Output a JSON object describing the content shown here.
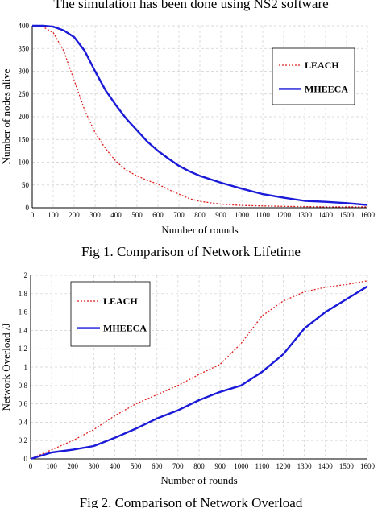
{
  "header_text": "The simulation has been done using NS2 software",
  "colors": {
    "leach": "#e02020",
    "mheeca": "#1a1ad8",
    "grid": "#cfcfcf"
  },
  "chart_data": [
    {
      "type": "line",
      "caption": "Fig 1. Comparison of Network Lifetime",
      "xlabel": "Number of rounds",
      "ylabel": "Number of nodes alive",
      "xlim": [
        0,
        1600
      ],
      "ylim": [
        0,
        400
      ],
      "xticks": [
        "0",
        "100",
        "200",
        "300",
        "400",
        "500",
        "600",
        "700",
        "800",
        "900",
        "1000",
        "1100",
        "1200",
        "1300",
        "1400",
        "1500",
        "1600"
      ],
      "yticks": [
        "0",
        "50",
        "100",
        "150",
        "200",
        "250",
        "300",
        "350",
        "400"
      ],
      "grid": true,
      "legend_position": "top-right",
      "series": [
        {
          "name": "LEACH",
          "style": "dotted",
          "x": [
            0,
            50,
            100,
            150,
            200,
            250,
            300,
            350,
            400,
            450,
            500,
            550,
            600,
            650,
            700,
            750,
            800,
            900,
            1000,
            1200,
            1400,
            1600
          ],
          "y": [
            400,
            398,
            385,
            345,
            280,
            215,
            165,
            130,
            102,
            82,
            70,
            60,
            52,
            40,
            30,
            20,
            14,
            8,
            5,
            3,
            2,
            2
          ]
        },
        {
          "name": "MHEECA",
          "style": "solid",
          "x": [
            0,
            50,
            100,
            150,
            200,
            250,
            300,
            350,
            400,
            450,
            500,
            550,
            600,
            650,
            700,
            750,
            800,
            900,
            1000,
            1100,
            1200,
            1300,
            1400,
            1500,
            1600
          ],
          "y": [
            400,
            400,
            398,
            390,
            375,
            345,
            300,
            258,
            225,
            195,
            170,
            145,
            125,
            108,
            92,
            80,
            70,
            55,
            42,
            30,
            22,
            15,
            13,
            10,
            6
          ]
        }
      ]
    },
    {
      "type": "line",
      "caption": "Fig 2. Comparison of Network Overload",
      "xlabel": "Number of rounds",
      "ylabel": "Network Overload /J",
      "xlim": [
        0,
        1600
      ],
      "ylim": [
        0,
        2
      ],
      "xticks": [
        "0",
        "100",
        "200",
        "300",
        "400",
        "500",
        "600",
        "700",
        "800",
        "900",
        "1000",
        "1100",
        "1200",
        "1300",
        "1400",
        "1500",
        "1600"
      ],
      "yticks": [
        "0",
        "0.2",
        "0.4",
        "0.6",
        "0.8",
        "1",
        "1.2",
        "1.4",
        "1.6",
        "1.8",
        "2"
      ],
      "grid": true,
      "legend_position": "top-left",
      "series": [
        {
          "name": "LEACH",
          "style": "dotted",
          "x": [
            0,
            100,
            200,
            300,
            400,
            500,
            600,
            700,
            800,
            900,
            1000,
            1100,
            1200,
            1300,
            1400,
            1500,
            1600
          ],
          "y": [
            0,
            0.1,
            0.2,
            0.32,
            0.47,
            0.6,
            0.7,
            0.8,
            0.92,
            1.03,
            1.26,
            1.56,
            1.72,
            1.82,
            1.87,
            1.9,
            1.94
          ]
        },
        {
          "name": "MHEECA",
          "style": "solid",
          "x": [
            0,
            100,
            200,
            300,
            400,
            500,
            600,
            700,
            800,
            900,
            1000,
            1100,
            1200,
            1300,
            1400,
            1500,
            1600
          ],
          "y": [
            0,
            0.07,
            0.1,
            0.14,
            0.23,
            0.33,
            0.44,
            0.53,
            0.64,
            0.73,
            0.8,
            0.95,
            1.14,
            1.42,
            1.6,
            1.74,
            1.88
          ]
        }
      ]
    }
  ]
}
